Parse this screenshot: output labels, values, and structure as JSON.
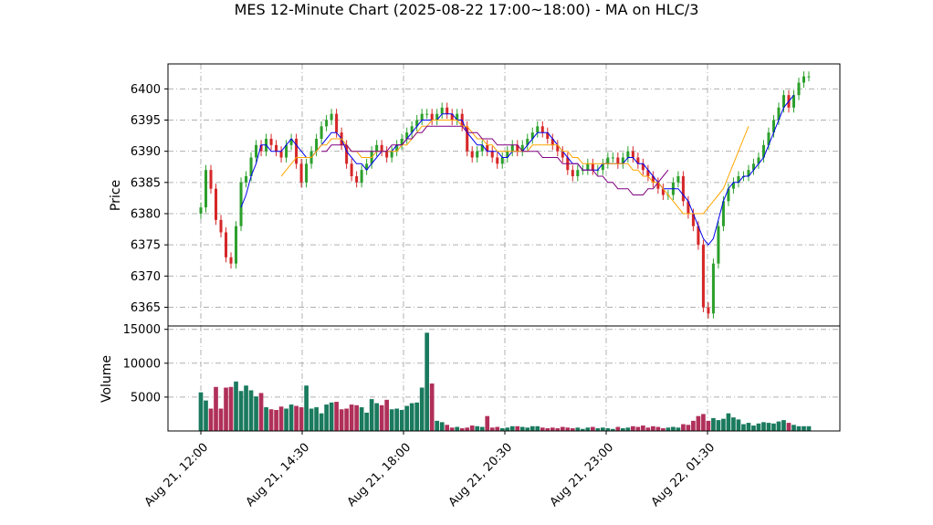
{
  "chart_data": {
    "type": "candlestick",
    "title": "MES 12-Minute Chart (2025-08-22 17:00~18:00) - MA on HLC/3",
    "price_panel": {
      "ylabel": "Price",
      "ylim": [
        6362,
        6404
      ],
      "yticks": [
        6365,
        6370,
        6375,
        6380,
        6385,
        6390,
        6395,
        6400
      ],
      "grid": true,
      "up_color": "#2ca02c",
      "down_color": "#d62728",
      "close": [
        6381,
        6387,
        6384,
        6379,
        6377,
        6373,
        6372,
        6378,
        6385,
        6386,
        6389,
        6391,
        6390,
        6392,
        6391,
        6390,
        6389,
        6391,
        6392,
        6388,
        6385,
        6388,
        6390,
        6392,
        6394,
        6395,
        6396,
        6393,
        6391,
        6388,
        6386,
        6385,
        6387,
        6388,
        6390,
        6391,
        6390,
        6389,
        6390,
        6391,
        6392,
        6393,
        6394,
        6395,
        6396,
        6396,
        6395,
        6396,
        6397,
        6396,
        6395,
        6396,
        6394,
        6390,
        6389,
        6390,
        6391,
        6390,
        6389,
        6388,
        6389,
        6390,
        6391,
        6390,
        6391,
        6392,
        6393,
        6394,
        6393,
        6392,
        6391,
        6390,
        6389,
        6387,
        6386,
        6387,
        6387,
        6388,
        6387,
        6387,
        6388,
        6389,
        6389,
        6388,
        6389,
        6390,
        6389,
        6388,
        6387,
        6386,
        6385,
        6384,
        6383,
        6383,
        6385,
        6386,
        6382,
        6380,
        6378,
        6375,
        6365,
        6364,
        6372,
        6378,
        6382,
        6384,
        6385,
        6386,
        6386,
        6387,
        6388,
        6389,
        6391,
        6393,
        6395,
        6397,
        6399,
        6397,
        6399,
        6401,
        6402,
        6402
      ],
      "series": [
        {
          "name": "",
          "color": "#0000ee",
          "values": [
            null,
            null,
            null,
            null,
            null,
            null,
            null,
            null,
            6381,
            6383,
            6386,
            6388,
            6391,
            6391,
            6390,
            6390,
            6390,
            6391,
            6392,
            6391,
            6390,
            6389,
            6389,
            6390,
            6391,
            6392,
            6393,
            6393,
            6392,
            6390,
            6389,
            6388,
            6388,
            6387,
            6388,
            6389,
            6390,
            6390,
            6390,
            6391,
            6391,
            6392,
            6393,
            6394,
            6395,
            6395,
            6395,
            6395,
            6396,
            6396,
            6396,
            6395,
            6395,
            6393,
            6392,
            6391,
            6391,
            6390,
            6390,
            6390,
            6389,
            6389,
            6390,
            6390,
            6390,
            6391,
            6392,
            6393,
            6393,
            6393,
            6392,
            6391,
            6390,
            6389,
            6388,
            6388,
            6387,
            6387,
            6387,
            6387,
            6388,
            6388,
            6388,
            6388,
            6388,
            6389,
            6389,
            6388,
            6388,
            6387,
            6386,
            6385,
            6384,
            6384,
            6384,
            6384,
            6383,
            6382,
            6380,
            6378,
            6376,
            6375,
            6376,
            6379,
            6382,
            6384,
            6385,
            6385,
            6386,
            6386,
            6387,
            6388,
            6389,
            6391,
            6393,
            6395,
            6397,
            6398,
            6399
          ]
        },
        {
          "name": "",
          "color": "#ffa500",
          "values": [
            null,
            null,
            null,
            null,
            null,
            null,
            null,
            null,
            null,
            null,
            null,
            null,
            null,
            null,
            null,
            null,
            6386,
            6387,
            6388,
            6389,
            6389,
            6389,
            6389,
            6390,
            6391,
            6391,
            6392,
            6392,
            6392,
            6391,
            6390,
            6390,
            6389,
            6389,
            6389,
            6390,
            6390,
            6390,
            6390,
            6390,
            6391,
            6391,
            6392,
            6393,
            6394,
            6394,
            6395,
            6395,
            6395,
            6395,
            6395,
            6395,
            6394,
            6394,
            6393,
            6392,
            6392,
            6391,
            6391,
            6390,
            6390,
            6390,
            6390,
            6390,
            6390,
            6390,
            6391,
            6391,
            6391,
            6391,
            6391,
            6391,
            6390,
            6390,
            6389,
            6389,
            6388,
            6388,
            6388,
            6388,
            6388,
            6388,
            6388,
            6388,
            6388,
            6388,
            6387,
            6387,
            6386,
            6386,
            6385,
            6385,
            6384,
            6383,
            6382,
            6381,
            6380,
            6380,
            6380,
            6380,
            6380,
            6381,
            6382,
            6383,
            6384,
            6386,
            6388,
            6390,
            6392,
            6394
          ]
        },
        {
          "name": "",
          "color": "#800080",
          "values": [
            null,
            null,
            null,
            null,
            null,
            null,
            null,
            null,
            null,
            null,
            null,
            null,
            null,
            null,
            null,
            null,
            null,
            null,
            null,
            null,
            null,
            null,
            null,
            null,
            6390,
            6390,
            6391,
            6391,
            6391,
            6391,
            6390,
            6390,
            6390,
            6390,
            6390,
            6390,
            6390,
            6390,
            6391,
            6391,
            6391,
            6392,
            6392,
            6393,
            6393,
            6394,
            6394,
            6394,
            6394,
            6394,
            6394,
            6394,
            6394,
            6393,
            6393,
            6393,
            6392,
            6392,
            6392,
            6391,
            6391,
            6391,
            6391,
            6391,
            6390,
            6390,
            6390,
            6390,
            6389,
            6389,
            6389,
            6389,
            6388,
            6388,
            6388,
            6388,
            6387,
            6387,
            6387,
            6386,
            6386,
            6385,
            6385,
            6384,
            6384,
            6384,
            6383,
            6383,
            6383,
            6384,
            6384,
            6385,
            6386,
            6387
          ]
        }
      ]
    },
    "volume_panel": {
      "ylabel": "Volume",
      "ylim": [
        0,
        15500
      ],
      "yticks": [
        5000,
        10000,
        15000
      ],
      "grid": true,
      "up_color": "#1a7a5e",
      "down_color": "#b0305a",
      "values": [
        5700,
        4500,
        3300,
        6500,
        3300,
        6400,
        6500,
        7300,
        5900,
        6700,
        6000,
        5100,
        5600,
        3500,
        3200,
        3100,
        3600,
        3300,
        3900,
        3700,
        3500,
        6700,
        3300,
        3500,
        2600,
        3900,
        4200,
        4300,
        3200,
        3300,
        3900,
        3800,
        3500,
        2700,
        4700,
        4100,
        3800,
        4600,
        3200,
        3300,
        3100,
        3700,
        4100,
        4200,
        6400,
        14500,
        7000,
        1500,
        1300,
        900,
        500,
        600,
        400,
        500,
        800,
        700,
        600,
        2200,
        500,
        600,
        400,
        500,
        700,
        700,
        600,
        500,
        700,
        700,
        500,
        400,
        500,
        400,
        600,
        500,
        400,
        500,
        300,
        500,
        600,
        400,
        500,
        400,
        300,
        600,
        400,
        500,
        700,
        600,
        800,
        500,
        700,
        600,
        400,
        500,
        600,
        500,
        1000,
        900,
        1500,
        2200,
        2500,
        1500,
        1900,
        1600,
        1800,
        2600,
        2000,
        1700,
        1000,
        1200,
        800,
        1100,
        1300,
        1200,
        1100,
        1400,
        1600,
        1200,
        900,
        700,
        700,
        700
      ],
      "colors": "up-down"
    },
    "x_axis": {
      "tick_labels": [
        "Aug 21, 12:00",
        "Aug 21, 14:30",
        "Aug 21, 18:00",
        "Aug 21, 20:30",
        "Aug 21, 23:00",
        "Aug 22, 01:30"
      ]
    }
  }
}
